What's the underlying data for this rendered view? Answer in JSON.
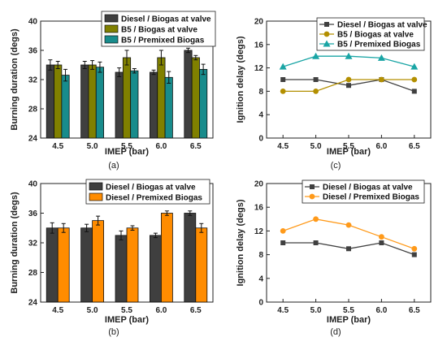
{
  "colors": {
    "diesel_valve": "#3f3f3f",
    "b5_valve": "#808000",
    "b5_premixed": "#188c8c",
    "diesel_premixed": "#ff8c00",
    "line_diesel_valve": "#404040",
    "line_b5_valve": "#b38f00",
    "line_b5_premixed": "#1aa5a5",
    "line_diesel_premixed": "#ff9a1a"
  },
  "chart_data": [
    {
      "id": "a",
      "type": "bar",
      "panel_label": "(a)",
      "xlabel": "IMEP (bar)",
      "ylabel": "Burning duration (degs)",
      "categories": [
        "4.5",
        "5.0",
        "5.5",
        "6.0",
        "6.5"
      ],
      "ylim": [
        24,
        40
      ],
      "yticks": [
        24,
        28,
        32,
        36,
        40
      ],
      "legend_position": "top-left",
      "series": [
        {
          "name": "Diesel / Biogas at valve",
          "values": [
            34,
            34,
            33,
            33,
            36
          ],
          "errors": [
            0.7,
            0.5,
            0.6,
            0.3,
            0.3
          ],
          "color_key": "diesel_valve"
        },
        {
          "name": "B5 / Biogas at valve",
          "values": [
            34,
            34,
            35,
            35,
            35
          ],
          "errors": [
            0.5,
            0.6,
            1.0,
            1.0,
            0.3
          ],
          "color_key": "b5_valve"
        },
        {
          "name": "B5 / Premixed Biogas",
          "values": [
            32.6,
            33.7,
            33.2,
            32.3,
            33.4
          ],
          "errors": [
            0.8,
            0.7,
            0.3,
            0.8,
            0.7
          ],
          "color_key": "b5_premixed"
        }
      ]
    },
    {
      "id": "c",
      "type": "line",
      "panel_label": "(c)",
      "xlabel": "IMEP (bar)",
      "ylabel": "Ignition delay (degs)",
      "x": [
        "4.5",
        "5.0",
        "5.5",
        "6.0",
        "6.5"
      ],
      "ylim": [
        0,
        20
      ],
      "yticks": [
        0,
        4,
        8,
        12,
        16,
        20
      ],
      "legend_position": "top-right",
      "series": [
        {
          "name": "Diesel / Biogas at valve",
          "values": [
            10,
            10,
            9,
            10,
            8
          ],
          "marker": "square",
          "color_key": "line_diesel_valve"
        },
        {
          "name": "B5 / Biogas at valve",
          "values": [
            8,
            8,
            10,
            10,
            10
          ],
          "marker": "circle",
          "color_key": "line_b5_valve"
        },
        {
          "name": "B5 / Premixed Biogas",
          "values": [
            12.2,
            14,
            14,
            13.7,
            12.2
          ],
          "marker": "triangle",
          "color_key": "line_b5_premixed"
        }
      ]
    },
    {
      "id": "b",
      "type": "bar",
      "panel_label": "(b)",
      "xlabel": "IMEP (bar)",
      "ylabel": "Burning duration (degs)",
      "categories": [
        "4.5",
        "5.0",
        "5.5",
        "6.0",
        "6.5"
      ],
      "ylim": [
        24,
        40
      ],
      "yticks": [
        24,
        28,
        32,
        36,
        40
      ],
      "legend_position": "top-right",
      "series": [
        {
          "name": "Diesel / Biogas at valve",
          "values": [
            34,
            34,
            33,
            33,
            36
          ],
          "errors": [
            0.7,
            0.5,
            0.6,
            0.3,
            0.3
          ],
          "color_key": "diesel_valve"
        },
        {
          "name": "Diesel / Premixed Biogas",
          "values": [
            34,
            35,
            34,
            36,
            34
          ],
          "errors": [
            0.6,
            0.6,
            0.3,
            0.3,
            0.6
          ],
          "color_key": "diesel_premixed"
        }
      ]
    },
    {
      "id": "d",
      "type": "line",
      "panel_label": "(d)",
      "xlabel": "IMEP (bar)",
      "ylabel": "Ignition delay (degs)",
      "x": [
        "4.5",
        "5.0",
        "5.5",
        "6.0",
        "6.5"
      ],
      "ylim": [
        0,
        20
      ],
      "yticks": [
        0,
        4,
        8,
        12,
        16,
        20
      ],
      "legend_position": "top-right",
      "series": [
        {
          "name": "Diesel / Biogas at valve",
          "values": [
            10,
            10,
            9,
            10,
            8
          ],
          "marker": "square",
          "color_key": "line_diesel_valve"
        },
        {
          "name": "Diesel / Premixed Biogas",
          "values": [
            12,
            14,
            13,
            11,
            9
          ],
          "marker": "circle",
          "color_key": "line_diesel_premixed"
        }
      ]
    }
  ]
}
